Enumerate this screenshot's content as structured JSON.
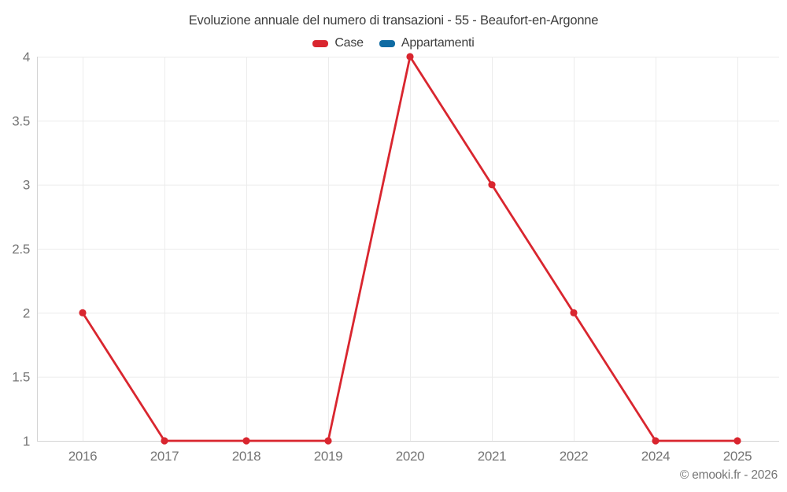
{
  "footer": {
    "text": "© emooki.fr - 2026"
  },
  "chart_data": {
    "type": "line",
    "title": "Evoluzione annuale del numero di transazioni - 55 - Beaufort-en-Argonne",
    "categories": [
      "2016",
      "2017",
      "2018",
      "2019",
      "2020",
      "2021",
      "2022",
      "2024",
      "2025"
    ],
    "series": [
      {
        "name": "Case",
        "color": "#d9262f",
        "values": [
          2,
          1,
          1,
          1,
          4,
          3,
          2,
          1,
          1
        ]
      },
      {
        "name": "Appartamenti",
        "color": "#0f6ba3",
        "values": []
      }
    ],
    "xlabel": "",
    "ylabel": "",
    "ylim": [
      1,
      4
    ],
    "yticks": [
      1,
      1.5,
      2,
      2.5,
      3,
      3.5,
      4
    ],
    "grid": true,
    "legend_position": "top"
  }
}
